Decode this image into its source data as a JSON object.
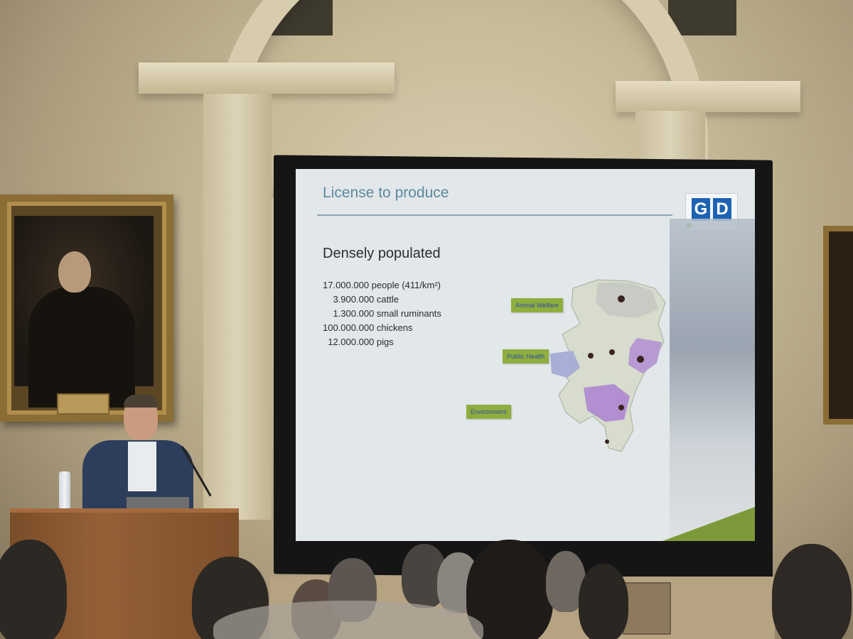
{
  "slide": {
    "title": "License to produce",
    "logo_text": "GD",
    "logo_letters": [
      "G",
      "D"
    ],
    "heading": "Densely populated",
    "stats": [
      "17.000.000 people (411/km²)",
      "    3.900.000 cattle",
      "    1.300.000 small ruminants",
      "100.000.000 chickens",
      "  12.000.000 pigs"
    ],
    "map_labels": {
      "animal_welfare": "Animal Welfare",
      "public_health": "Public Health",
      "environment": "Environment"
    },
    "colors": {
      "title": "#5d8a9e",
      "label_bg": "#8fae3e",
      "label_text": "#2d4ea1",
      "logo": "#1d62b3",
      "region_purple": "#b79ad2",
      "region_light": "#d7dccd"
    }
  }
}
